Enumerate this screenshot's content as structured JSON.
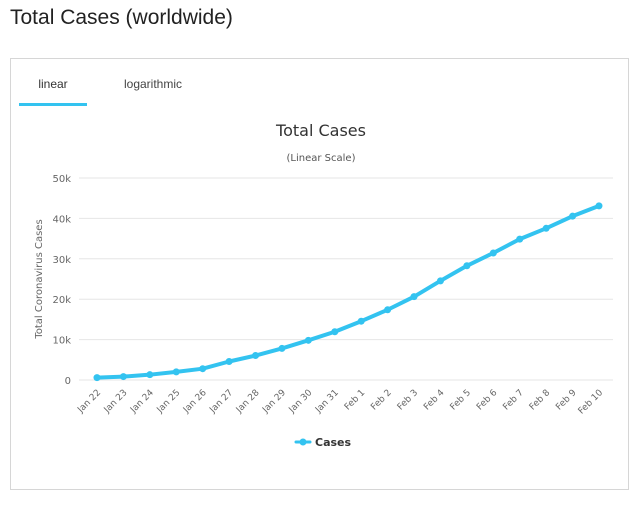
{
  "page": {
    "title": "Total Cases (worldwide)"
  },
  "tabs": [
    {
      "label": "linear",
      "active": true
    },
    {
      "label": "logarithmic",
      "active": false
    }
  ],
  "accent_color": "#33c3f0",
  "chart_data": {
    "type": "line",
    "title": "Total Cases",
    "subtitle": "(Linear Scale)",
    "xlabel": "",
    "ylabel": "Total Coronavirus Cases",
    "ylim": [
      0,
      50000
    ],
    "yticks": [
      0,
      10000,
      20000,
      30000,
      40000,
      50000
    ],
    "ytick_labels": [
      "0",
      "10k",
      "20k",
      "30k",
      "40k",
      "50k"
    ],
    "grid": true,
    "legend_position": "bottom-center",
    "categories": [
      "Jan 22",
      "Jan 23",
      "Jan 24",
      "Jan 25",
      "Jan 26",
      "Jan 27",
      "Jan 28",
      "Jan 29",
      "Jan 30",
      "Jan 31",
      "Feb 1",
      "Feb 2",
      "Feb 3",
      "Feb 4",
      "Feb 5",
      "Feb 6",
      "Feb 7",
      "Feb 8",
      "Feb 9",
      "Feb 10"
    ],
    "series": [
      {
        "name": "Cases",
        "color": "#33c3f0",
        "values": [
          580,
          845,
          1317,
          2015,
          2800,
          4581,
          6058,
          7813,
          9823,
          11950,
          14553,
          17391,
          20630,
          24545,
          28276,
          31439,
          34876,
          37552,
          40553,
          43099
        ]
      }
    ]
  }
}
